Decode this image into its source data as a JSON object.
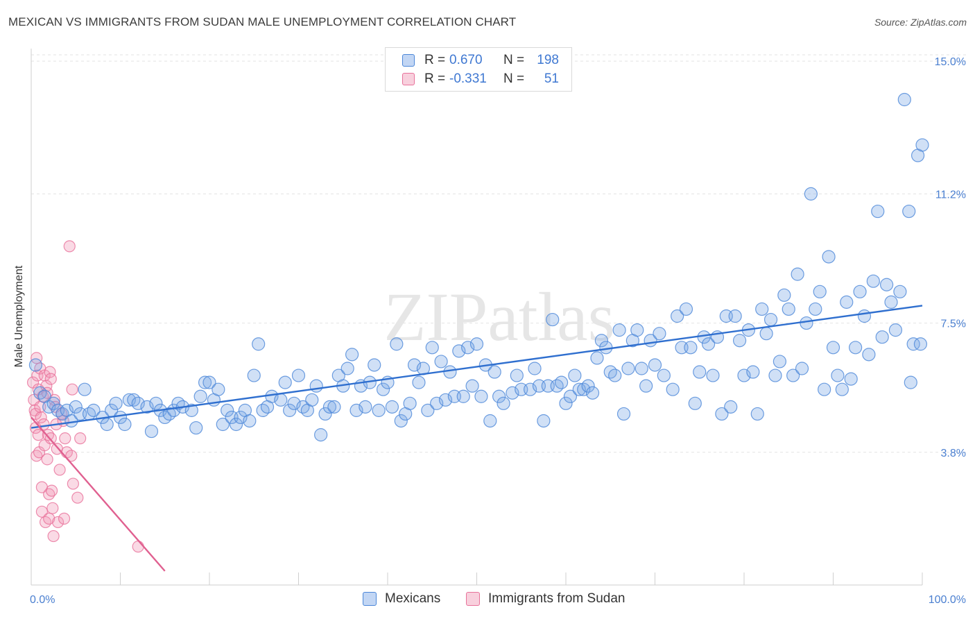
{
  "title": "MEXICAN VS IMMIGRANTS FROM SUDAN MALE UNEMPLOYMENT CORRELATION CHART",
  "source": "Source: ZipAtlas.com",
  "watermark": "ZIPatlas",
  "colors": {
    "blue": "#4a86d8",
    "blue_fill": "rgba(120,165,230,0.35)",
    "blue_line": "#2f6fcf",
    "pink": "#e8719a",
    "pink_fill": "rgba(240,150,180,0.35)",
    "pink_line": "#e06090",
    "tick_text": "#4a7fd0",
    "grid": "#e3e3e3"
  },
  "legend": {
    "rows": [
      {
        "r_label": "R =",
        "r_value": "0.670",
        "n_label": "N =",
        "n_value": "198",
        "series": "blue"
      },
      {
        "r_label": "R =",
        "r_value": "-0.331",
        "n_label": "N =",
        "n_value": "51",
        "series": "pink"
      }
    ]
  },
  "bottom_legend": [
    {
      "label": "Mexicans",
      "series": "blue"
    },
    {
      "label": "Immigrants from Sudan",
      "series": "pink"
    }
  ],
  "chart_data": {
    "type": "scatter",
    "title": "MEXICAN VS IMMIGRANTS FROM SUDAN MALE UNEMPLOYMENT CORRELATION CHART",
    "xlabel": "",
    "ylabel": "Male Unemployment",
    "xlim": [
      0,
      100
    ],
    "ylim": [
      0,
      15.5
    ],
    "x_tick_labels": [
      "0.0%",
      "100.0%"
    ],
    "y_ticks": [
      3.8,
      7.5,
      11.2,
      15.0
    ],
    "y_tick_labels": [
      "3.8%",
      "7.5%",
      "11.2%",
      "15.0%"
    ],
    "grid": true,
    "series": [
      {
        "name": "Mexicans",
        "color": "blue",
        "trendline": {
          "x": [
            0,
            100
          ],
          "y": [
            4.5,
            8.0
          ]
        },
        "points": [
          [
            0.5,
            6.3
          ],
          [
            1,
            5.5
          ],
          [
            1.5,
            5.4
          ],
          [
            2,
            5.1
          ],
          [
            2.5,
            5.2
          ],
          [
            3,
            5.0
          ],
          [
            3.5,
            4.9
          ],
          [
            4,
            5.0
          ],
          [
            4.5,
            4.7
          ],
          [
            5,
            5.1
          ],
          [
            5.5,
            4.9
          ],
          [
            6,
            5.6
          ],
          [
            6.5,
            4.9
          ],
          [
            7,
            5.0
          ],
          [
            8,
            4.8
          ],
          [
            8.5,
            4.6
          ],
          [
            9,
            5.0
          ],
          [
            9.5,
            5.2
          ],
          [
            10,
            4.8
          ],
          [
            10.5,
            4.6
          ],
          [
            11,
            5.3
          ],
          [
            11.5,
            5.3
          ],
          [
            12,
            5.2
          ],
          [
            13,
            5.1
          ],
          [
            13.5,
            4.4
          ],
          [
            14,
            5.2
          ],
          [
            14.5,
            5.0
          ],
          [
            15,
            4.8
          ],
          [
            15.5,
            4.9
          ],
          [
            16,
            5.0
          ],
          [
            16.5,
            5.2
          ],
          [
            17,
            5.1
          ],
          [
            18,
            5.0
          ],
          [
            18.5,
            4.5
          ],
          [
            19,
            5.4
          ],
          [
            19.5,
            5.8
          ],
          [
            20,
            5.8
          ],
          [
            20.5,
            5.3
          ],
          [
            21,
            5.6
          ],
          [
            21.5,
            4.6
          ],
          [
            22,
            5.0
          ],
          [
            22.5,
            4.8
          ],
          [
            23,
            4.6
          ],
          [
            23.5,
            4.8
          ],
          [
            24,
            5.0
          ],
          [
            24.5,
            4.7
          ],
          [
            25,
            6.0
          ],
          [
            25.5,
            6.9
          ],
          [
            26,
            5.0
          ],
          [
            26.5,
            5.1
          ],
          [
            27,
            5.4
          ],
          [
            28,
            5.3
          ],
          [
            28.5,
            5.8
          ],
          [
            29,
            5.0
          ],
          [
            29.5,
            5.2
          ],
          [
            30,
            6.0
          ],
          [
            30.5,
            5.1
          ],
          [
            31,
            5.0
          ],
          [
            31.5,
            5.3
          ],
          [
            32,
            5.7
          ],
          [
            32.5,
            4.3
          ],
          [
            33,
            4.9
          ],
          [
            33.5,
            5.1
          ],
          [
            34,
            5.1
          ],
          [
            34.5,
            6.0
          ],
          [
            35,
            5.7
          ],
          [
            35.5,
            6.2
          ],
          [
            36,
            6.6
          ],
          [
            36.5,
            5.0
          ],
          [
            37,
            5.7
          ],
          [
            37.5,
            5.1
          ],
          [
            38,
            5.8
          ],
          [
            38.5,
            6.3
          ],
          [
            39,
            5.0
          ],
          [
            39.5,
            5.6
          ],
          [
            40,
            5.8
          ],
          [
            40.5,
            5.1
          ],
          [
            41,
            6.9
          ],
          [
            41.5,
            4.7
          ],
          [
            42,
            4.9
          ],
          [
            42.5,
            5.2
          ],
          [
            43,
            6.3
          ],
          [
            43.5,
            5.8
          ],
          [
            44,
            6.2
          ],
          [
            44.5,
            5.0
          ],
          [
            45,
            6.8
          ],
          [
            45.5,
            5.2
          ],
          [
            46,
            6.4
          ],
          [
            46.5,
            5.3
          ],
          [
            47,
            6.1
          ],
          [
            47.5,
            5.4
          ],
          [
            48,
            6.7
          ],
          [
            48.5,
            5.4
          ],
          [
            49,
            6.8
          ],
          [
            49.5,
            5.7
          ],
          [
            50,
            6.9
          ],
          [
            50.5,
            5.4
          ],
          [
            51,
            6.3
          ],
          [
            51.5,
            4.7
          ],
          [
            52,
            6.1
          ],
          [
            52.5,
            5.4
          ],
          [
            53,
            5.2
          ],
          [
            54,
            5.5
          ],
          [
            54.5,
            6.0
          ],
          [
            55,
            5.6
          ],
          [
            56,
            5.6
          ],
          [
            56.5,
            6.2
          ],
          [
            57,
            5.7
          ],
          [
            57.5,
            4.7
          ],
          [
            58,
            5.7
          ],
          [
            58.5,
            7.6
          ],
          [
            59,
            5.7
          ],
          [
            59.5,
            5.8
          ],
          [
            60,
            5.2
          ],
          [
            60.5,
            5.4
          ],
          [
            61,
            6.0
          ],
          [
            61.5,
            5.6
          ],
          [
            62,
            5.6
          ],
          [
            62.5,
            5.7
          ],
          [
            63,
            5.5
          ],
          [
            63.5,
            6.5
          ],
          [
            64,
            7.0
          ],
          [
            64.5,
            6.8
          ],
          [
            65,
            6.1
          ],
          [
            65.5,
            6.0
          ],
          [
            66,
            7.3
          ],
          [
            66.5,
            4.9
          ],
          [
            67,
            6.2
          ],
          [
            67.5,
            7.0
          ],
          [
            68,
            7.3
          ],
          [
            68.5,
            6.2
          ],
          [
            69,
            5.7
          ],
          [
            69.5,
            7.0
          ],
          [
            70,
            6.3
          ],
          [
            70.5,
            7.2
          ],
          [
            71,
            6.0
          ],
          [
            72,
            5.6
          ],
          [
            72.5,
            7.7
          ],
          [
            73,
            6.8
          ],
          [
            73.5,
            7.9
          ],
          [
            74,
            6.8
          ],
          [
            74.5,
            5.2
          ],
          [
            75,
            6.1
          ],
          [
            75.5,
            7.1
          ],
          [
            76,
            6.9
          ],
          [
            76.5,
            6.0
          ],
          [
            77,
            7.1
          ],
          [
            77.5,
            4.9
          ],
          [
            78,
            7.7
          ],
          [
            78.5,
            5.1
          ],
          [
            79,
            7.7
          ],
          [
            79.5,
            7.0
          ],
          [
            80,
            6.0
          ],
          [
            80.5,
            7.3
          ],
          [
            81,
            6.1
          ],
          [
            81.5,
            4.9
          ],
          [
            82,
            7.9
          ],
          [
            82.5,
            7.2
          ],
          [
            83,
            7.6
          ],
          [
            83.5,
            6.0
          ],
          [
            84,
            6.4
          ],
          [
            84.5,
            8.3
          ],
          [
            85,
            7.9
          ],
          [
            85.5,
            6.0
          ],
          [
            86,
            8.9
          ],
          [
            86.5,
            6.2
          ],
          [
            87,
            7.5
          ],
          [
            87.5,
            11.2
          ],
          [
            88,
            7.9
          ],
          [
            88.5,
            8.4
          ],
          [
            89,
            5.6
          ],
          [
            89.5,
            9.4
          ],
          [
            90,
            6.8
          ],
          [
            90.5,
            6.0
          ],
          [
            91,
            5.6
          ],
          [
            91.5,
            8.1
          ],
          [
            92,
            5.9
          ],
          [
            92.5,
            6.8
          ],
          [
            93,
            8.4
          ],
          [
            93.5,
            7.7
          ],
          [
            94,
            6.6
          ],
          [
            94.5,
            8.7
          ],
          [
            95,
            10.7
          ],
          [
            95.5,
            7.1
          ],
          [
            96,
            8.6
          ],
          [
            96.5,
            8.1
          ],
          [
            97,
            7.3
          ],
          [
            97.5,
            8.4
          ],
          [
            98,
            13.9
          ],
          [
            98.5,
            10.7
          ],
          [
            99,
            6.9
          ],
          [
            99.5,
            12.3
          ],
          [
            100,
            12.6
          ],
          [
            99.8,
            6.9
          ],
          [
            98.7,
            5.8
          ]
        ]
      },
      {
        "name": "Immigrants from Sudan",
        "color": "pink",
        "trendline": {
          "x": [
            0,
            15
          ],
          "y": [
            4.8,
            0.4
          ]
        },
        "points": [
          [
            0.2,
            5.8
          ],
          [
            0.3,
            5.3
          ],
          [
            0.4,
            5.0
          ],
          [
            0.5,
            4.9
          ],
          [
            0.5,
            4.5
          ],
          [
            0.6,
            6.5
          ],
          [
            0.6,
            3.7
          ],
          [
            0.7,
            6.0
          ],
          [
            0.8,
            5.6
          ],
          [
            0.8,
            4.3
          ],
          [
            0.9,
            3.8
          ],
          [
            1.0,
            6.2
          ],
          [
            1.0,
            5.1
          ],
          [
            1.1,
            4.8
          ],
          [
            1.2,
            2.8
          ],
          [
            1.2,
            2.1
          ],
          [
            1.3,
            5.4
          ],
          [
            1.4,
            4.6
          ],
          [
            1.5,
            6.0
          ],
          [
            1.5,
            4.0
          ],
          [
            1.6,
            1.8
          ],
          [
            1.7,
            5.7
          ],
          [
            1.8,
            5.5
          ],
          [
            1.8,
            3.6
          ],
          [
            1.9,
            4.3
          ],
          [
            2.0,
            2.6
          ],
          [
            2.0,
            1.9
          ],
          [
            2.1,
            6.1
          ],
          [
            2.2,
            5.9
          ],
          [
            2.2,
            4.2
          ],
          [
            2.3,
            2.7
          ],
          [
            2.4,
            2.2
          ],
          [
            2.5,
            1.4
          ],
          [
            2.6,
            5.3
          ],
          [
            2.7,
            5.1
          ],
          [
            2.8,
            4.6
          ],
          [
            2.9,
            3.9
          ],
          [
            3.0,
            1.8
          ],
          [
            3.2,
            3.3
          ],
          [
            3.4,
            4.9
          ],
          [
            3.6,
            4.7
          ],
          [
            3.8,
            4.2
          ],
          [
            3.7,
            1.9
          ],
          [
            4.0,
            3.8
          ],
          [
            4.3,
            9.7
          ],
          [
            4.5,
            3.7
          ],
          [
            4.6,
            5.6
          ],
          [
            4.7,
            2.9
          ],
          [
            5.2,
            2.5
          ],
          [
            5.5,
            4.2
          ],
          [
            12,
            1.1
          ]
        ]
      }
    ]
  }
}
